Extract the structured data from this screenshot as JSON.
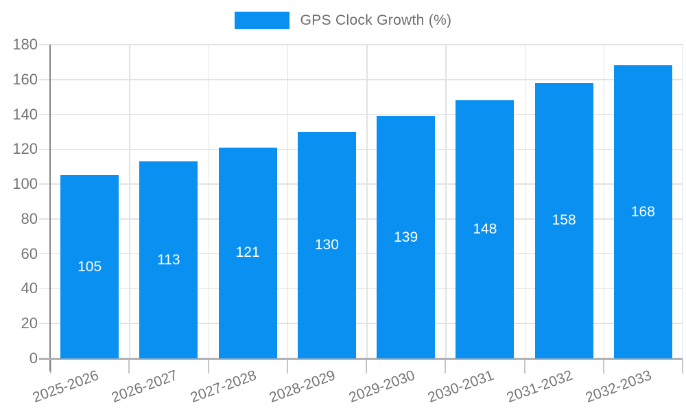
{
  "chart_data": {
    "type": "bar",
    "legend": "GPS Clock Growth (%)",
    "legend_position": "top-center",
    "categories": [
      "2025-2026",
      "2026-2027",
      "2027-2028",
      "2028-2029",
      "2029-2030",
      "2030-2031",
      "2031-2032",
      "2032-2033"
    ],
    "values": [
      105,
      113,
      121,
      130,
      139,
      148,
      158,
      168
    ],
    "yticks": [
      0,
      20,
      40,
      60,
      80,
      100,
      120,
      140,
      160,
      180
    ],
    "ylim": [
      0,
      180
    ],
    "grid": true,
    "value_label_style": "white, centered inside bar",
    "xlabel_rotation_deg": -20,
    "colors": {
      "bar": "#0a90f0",
      "axis_text": "#757575",
      "gridline": "#e2e2e2",
      "y_axis": "#858585",
      "x_axis": "#b2b2b2"
    }
  }
}
